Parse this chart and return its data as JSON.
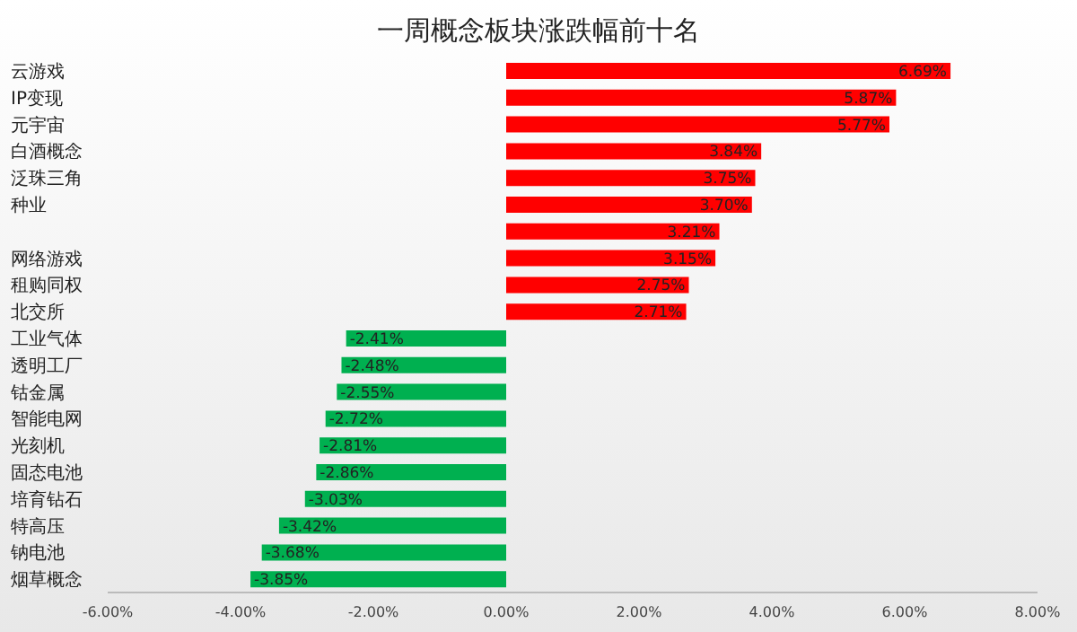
{
  "chart_data": {
    "type": "bar",
    "orientation": "horizontal",
    "title": "一周概念板块涨跌幅前十名",
    "categories": [
      "云游戏",
      "IP变现",
      "元宇宙",
      "白酒概念",
      "泛珠三角",
      "种业",
      null,
      "网络游戏",
      "租购同权",
      "北交所",
      "工业气体",
      "透明工厂",
      "钴金属",
      "智能电网",
      "光刻机",
      "固态电池",
      "培育钻石",
      "特高压",
      "钠电池",
      "烟草概念"
    ],
    "values": [
      6.69,
      5.87,
      5.77,
      3.84,
      3.75,
      3.7,
      3.21,
      3.15,
      2.75,
      2.71,
      -2.41,
      -2.48,
      -2.55,
      -2.72,
      -2.81,
      -2.86,
      -3.03,
      -3.42,
      -3.68,
      -3.85
    ],
    "value_labels": [
      "6.69%",
      "5.87%",
      "5.77%",
      "3.84%",
      "3.75%",
      "3.70%",
      "3.21%",
      "3.15%",
      "2.75%",
      "2.71%",
      "-2.41%",
      "-2.48%",
      "-2.55%",
      "-2.72%",
      "-2.81%",
      "-2.86%",
      "-3.03%",
      "-3.42%",
      "-3.68%",
      "-3.85%"
    ],
    "colors": [
      "#ff0000",
      "#ff0000",
      "#ff0000",
      "#ff0000",
      "#ff0000",
      "#ff0000",
      "#ff0000",
      "#ff0000",
      "#ff0000",
      "#ff0000",
      "#00b050",
      "#00b050",
      "#00b050",
      "#00b050",
      "#00b050",
      "#00b050",
      "#00b050",
      "#00b050",
      "#00b050",
      "#00b050"
    ],
    "xlim": [
      -6,
      8
    ],
    "xticks": [
      {
        "value": -6,
        "label": "-6.00%"
      },
      {
        "value": -4,
        "label": "-4.00%"
      },
      {
        "value": -2,
        "label": "-2.00%"
      },
      {
        "value": 0,
        "label": "0.00%"
      },
      {
        "value": 2,
        "label": "2.00%"
      },
      {
        "value": 4,
        "label": "4.00%"
      },
      {
        "value": 6,
        "label": "6.00%"
      },
      {
        "value": 8,
        "label": "8.00%"
      }
    ]
  }
}
